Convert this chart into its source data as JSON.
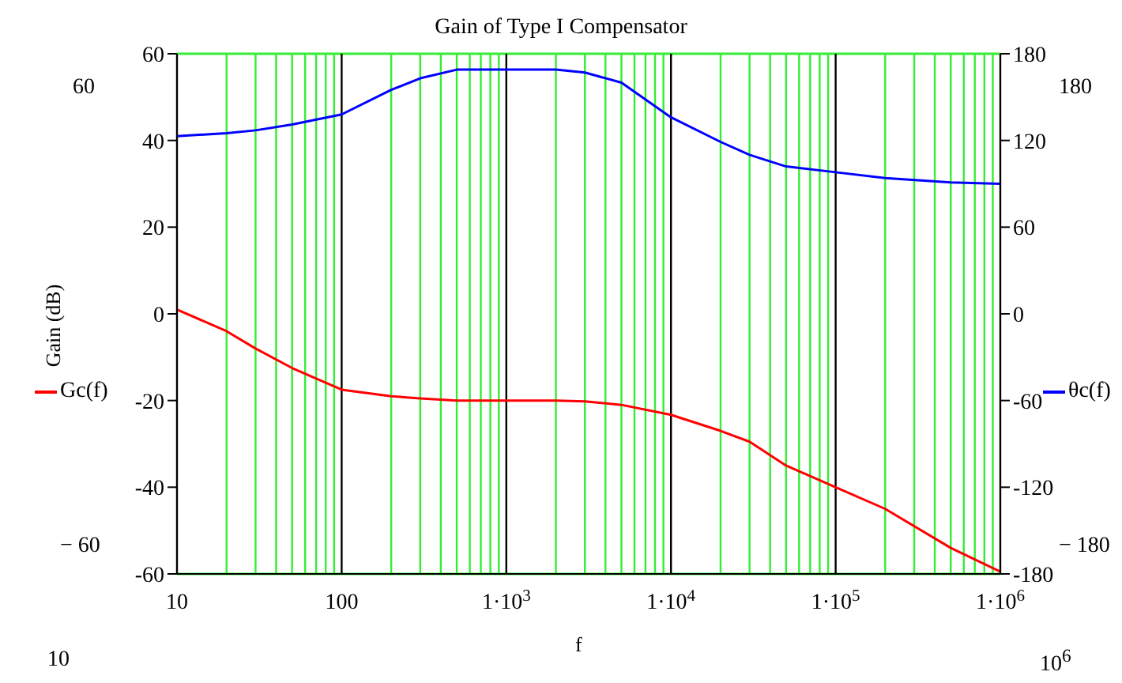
{
  "chart_data": {
    "type": "line",
    "title": "Gain of Type I Compensator",
    "xlabel": "f",
    "ylabel": "Gain  (dB)",
    "x": [
      10,
      20,
      30,
      50,
      100,
      200,
      300,
      500,
      1000,
      2000,
      3000,
      5000,
      10000,
      20000,
      30000,
      50000,
      100000,
      200000,
      500000,
      1000000
    ],
    "series": [
      {
        "name": "Gc(f)",
        "color": "#ff0000",
        "values": [
          1,
          -4,
          -8,
          -12.5,
          -17.5,
          -19,
          -19.5,
          -20,
          -20,
          -20,
          -20.2,
          -21,
          -23.3,
          -27,
          -29.5,
          -35,
          -40,
          -45,
          -54,
          -59.5
        ]
      },
      {
        "name": "θc(f)",
        "color": "#0000ff",
        "axis": "y2",
        "values": [
          123,
          125,
          127,
          131,
          138,
          155,
          163,
          169,
          169,
          169,
          167,
          160,
          136,
          119,
          110,
          102,
          98,
          94,
          91,
          90
        ]
      }
    ],
    "log": "x",
    "xlim": [
      10,
      1000000
    ],
    "xticks": [
      10,
      {
        "value": 20,
        "label": null
      },
      {
        "value": 30,
        "label": null
      },
      {
        "value": 40,
        "label": null
      },
      {
        "value": 50,
        "label": null
      },
      {
        "value": 60,
        "label": null
      },
      {
        "value": 70,
        "label": null
      },
      {
        "value": 80,
        "label": null
      },
      {
        "value": 90,
        "label": null
      },
      100,
      {
        "value": 200,
        "label": null
      },
      {
        "value": 300,
        "label": null
      },
      {
        "value": 400,
        "label": null
      },
      {
        "value": 500,
        "label": null
      },
      {
        "value": 600,
        "label": null
      },
      {
        "value": 700,
        "label": null
      },
      {
        "value": 800,
        "label": null
      },
      {
        "value": 900,
        "label": null
      },
      {
        "value": 1000,
        "label": "1·10$^{3}$"
      },
      {
        "value": 2000,
        "label": null
      },
      {
        "value": 3000,
        "label": null
      },
      {
        "value": 4000,
        "label": null
      },
      {
        "value": 5000,
        "label": null
      },
      {
        "value": 6000,
        "label": null
      },
      {
        "value": 7000,
        "label": null
      },
      {
        "value": 8000,
        "label": null
      },
      {
        "value": 9000,
        "label": null
      },
      {
        "value": 10000,
        "label": "1·10$^{4}$"
      },
      {
        "value": 20000,
        "label": null
      },
      {
        "value": 30000,
        "label": null
      },
      {
        "value": 40000,
        "label": null
      },
      {
        "value": 50000,
        "label": null
      },
      {
        "value": 60000,
        "label": null
      },
      {
        "value": 70000,
        "label": null
      },
      {
        "value": 80000,
        "label": null
      },
      {
        "value": 90000,
        "label": null
      },
      {
        "value": 100000,
        "label": "1·10$^{5}$"
      },
      {
        "value": 200000,
        "label": null
      },
      {
        "value": 300000,
        "label": null
      },
      {
        "value": 400000,
        "label": null
      },
      {
        "value": 500000,
        "label": null
      },
      {
        "value": 600000,
        "label": null
      },
      {
        "value": 700000,
        "label": null
      },
      {
        "value": 800000,
        "label": null
      },
      {
        "value": 900000,
        "label": null
      },
      {
        "value": 1000000,
        "label": "1·10$^{6}$"
      }
    ],
    "ylim": [
      -60,
      60
    ],
    "yticks": [
      -60,
      -40,
      -20,
      0,
      20,
      40,
      60
    ],
    "y2lim": [
      -180,
      180
    ],
    "y2ticks": [
      -180,
      -120,
      -60,
      0,
      60,
      120,
      180
    ],
    "grid": true,
    "legend": "left",
    "marker": "none",
    "line_style": "solid",
    "annotations": [
      "60",
      "− 60",
      "180",
      "− 180",
      "10",
      "10$^{6}$"
    ]
  }
}
